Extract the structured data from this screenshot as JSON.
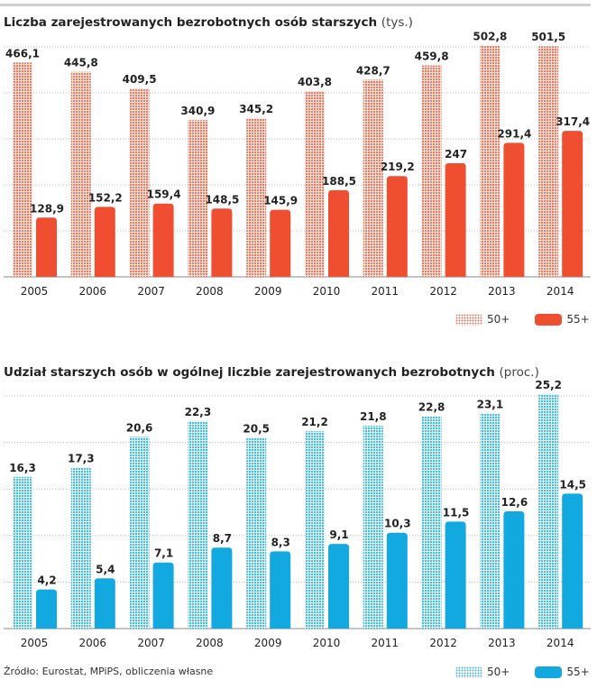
{
  "chart_data": [
    {
      "type": "bar",
      "title": "Liczba zarejestrowanych bezrobotnych osób starszych",
      "unit": "(tys.)",
      "categories": [
        "2005",
        "2006",
        "2007",
        "2008",
        "2009",
        "2010",
        "2011",
        "2012",
        "2013",
        "2014"
      ],
      "series": [
        {
          "name": "50+",
          "values": [
            466.1,
            445.8,
            409.5,
            340.9,
            345.2,
            403.8,
            428.7,
            459.8,
            502.8,
            501.5
          ],
          "labels": [
            "466,1",
            "445,8",
            "409,5",
            "340,9",
            "345,2",
            "403,8",
            "428,7",
            "459,8",
            "502,8",
            "501,5"
          ],
          "color": "#f05a3c",
          "style": "dotted"
        },
        {
          "name": "55+",
          "values": [
            128.9,
            152.2,
            159.4,
            148.5,
            145.9,
            188.5,
            219.2,
            247,
            291.4,
            317.4
          ],
          "labels": [
            "128,9",
            "152,2",
            "159,4",
            "148,5",
            "145,9",
            "188,5",
            "219,2",
            "247",
            "291,4",
            "317,4"
          ],
          "color": "#f04e30",
          "style": "solid"
        }
      ],
      "ylim": [
        0,
        500
      ],
      "grid": true,
      "legend": "bottom-right"
    },
    {
      "type": "bar",
      "title": "Udział starszych osób w ogólnej liczbie zarejestrowanych bezrobotnych",
      "unit": "(proc.)",
      "categories": [
        "2005",
        "2006",
        "2007",
        "2008",
        "2009",
        "2010",
        "2011",
        "2012",
        "2013",
        "2014"
      ],
      "series": [
        {
          "name": "50+",
          "values": [
            16.3,
            17.3,
            20.6,
            22.3,
            20.5,
            21.2,
            21.8,
            22.8,
            23.1,
            25.2
          ],
          "labels": [
            "16,3",
            "17,3",
            "20,6",
            "22,3",
            "20,5",
            "21,2",
            "21,8",
            "22,8",
            "23,1",
            "25,2"
          ],
          "color": "#29aee0",
          "style": "dotted"
        },
        {
          "name": "55+",
          "values": [
            4.2,
            5.4,
            7.1,
            8.7,
            8.3,
            9.1,
            10.3,
            11.5,
            12.6,
            14.5
          ],
          "labels": [
            "4,2",
            "5,4",
            "7,1",
            "8,7",
            "8,3",
            "9,1",
            "10,3",
            "11,5",
            "12,6",
            "14,5"
          ],
          "color": "#12a8e0",
          "style": "solid"
        }
      ],
      "ylim": [
        0,
        25
      ],
      "grid": true,
      "legend": "bottom-right"
    }
  ],
  "source": "Źródło: Eurostat, MPiPS, obliczenia własne"
}
